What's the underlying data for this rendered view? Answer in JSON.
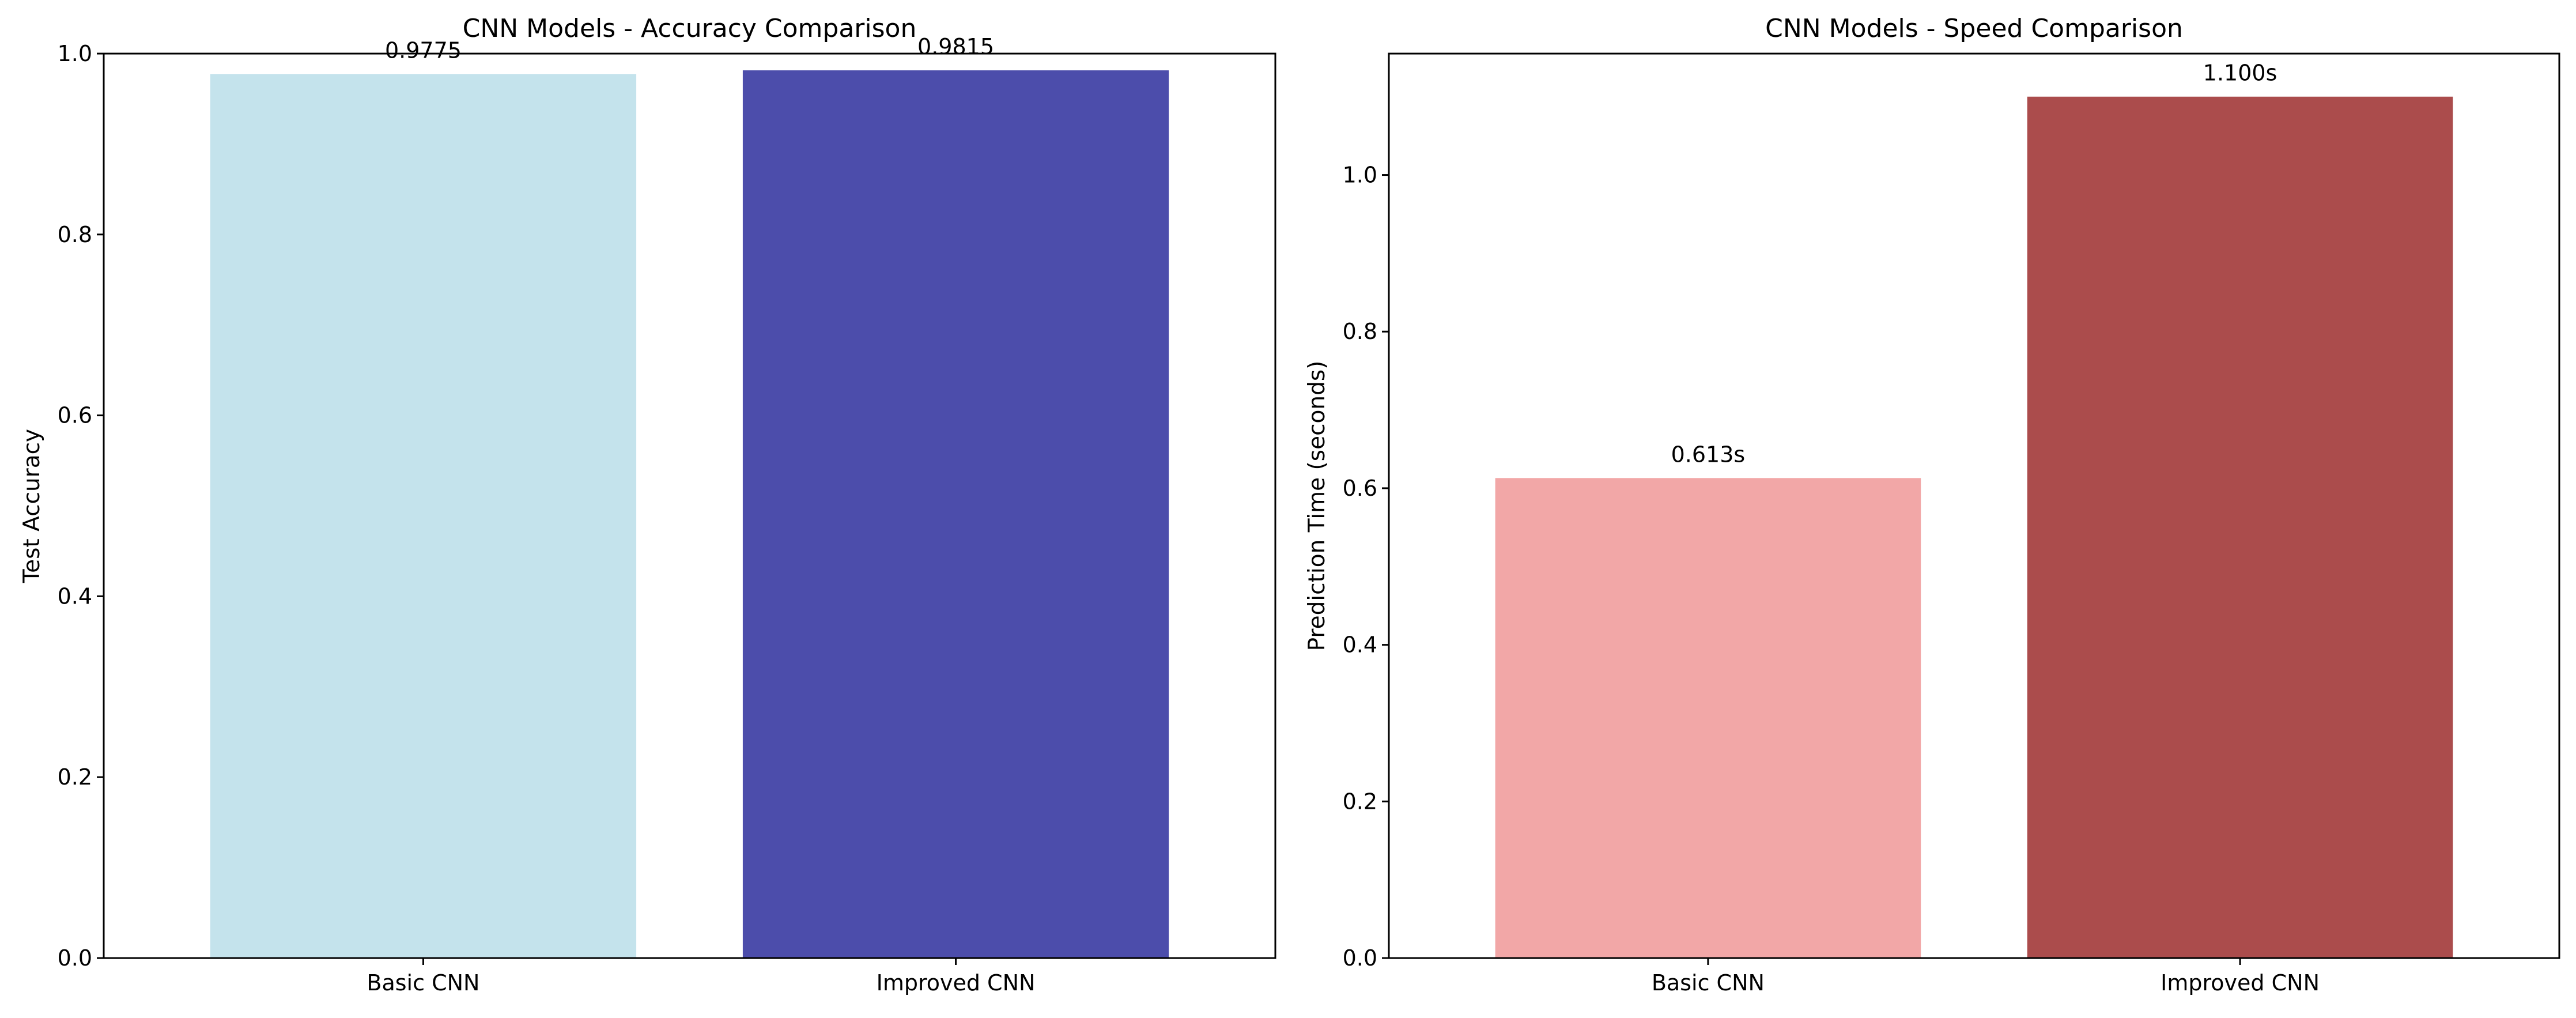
{
  "chart_data": [
    {
      "type": "bar",
      "title": "CNN Models - Accuracy Comparison",
      "xlabel": "",
      "ylabel": "Test Accuracy",
      "categories": [
        "Basic CNN",
        "Improved CNN"
      ],
      "values": [
        0.9775,
        0.9815
      ],
      "value_labels": [
        "0.9775",
        "0.9815"
      ],
      "colors": [
        "#c4e3ec",
        "#4c4dab"
      ],
      "ylim": [
        0,
        1.0
      ],
      "yticks": [
        0.0,
        0.2,
        0.4,
        0.6,
        0.8,
        1.0
      ],
      "ytick_labels": [
        "0.0",
        "0.2",
        "0.4",
        "0.6",
        "0.8",
        "1.0"
      ],
      "grid": false,
      "legend": false
    },
    {
      "type": "bar",
      "title": "CNN Models - Speed Comparison",
      "xlabel": "",
      "ylabel": "Prediction Time (seconds)",
      "categories": [
        "Basic CNN",
        "Improved CNN"
      ],
      "values": [
        0.613,
        1.1
      ],
      "value_labels": [
        "0.613s",
        "1.100s"
      ],
      "colors": [
        "#f2a7a7",
        "#ab4c4c"
      ],
      "ylim": [
        0,
        1.155
      ],
      "yticks": [
        0.0,
        0.2,
        0.4,
        0.6,
        0.8,
        1.0
      ],
      "ytick_labels": [
        "0.0",
        "0.2",
        "0.4",
        "0.6",
        "0.8",
        "1.0"
      ],
      "grid": false,
      "legend": false
    }
  ]
}
